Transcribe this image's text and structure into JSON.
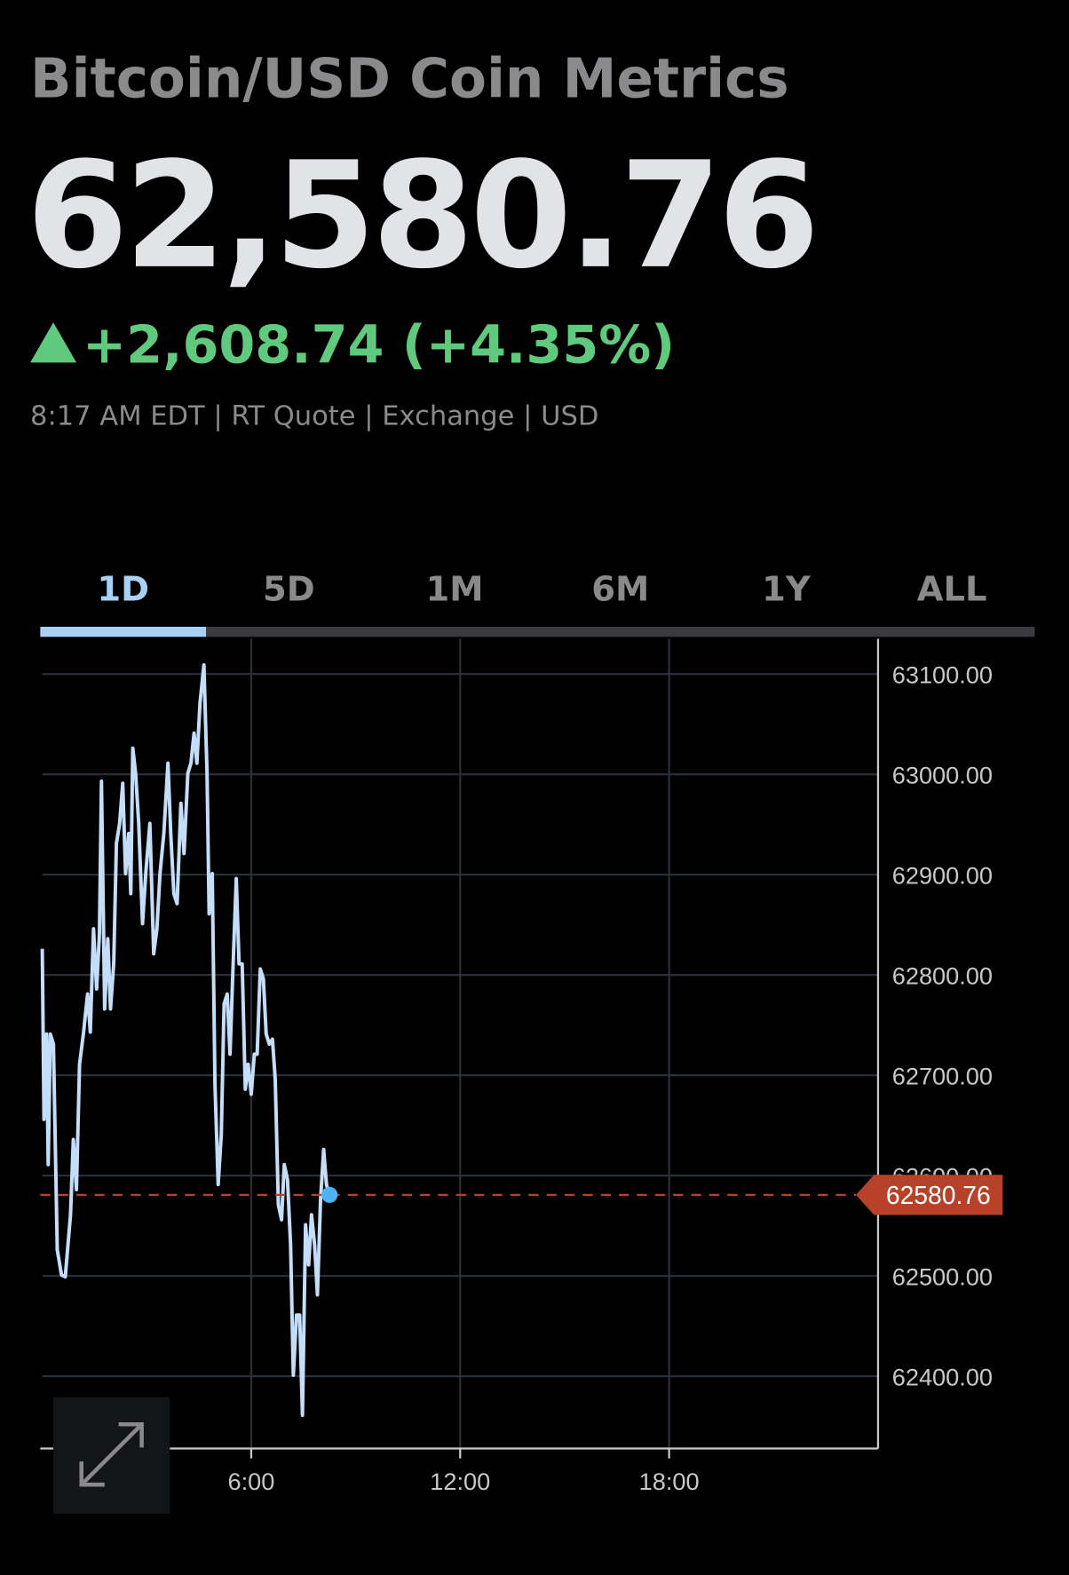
{
  "header": {
    "title": "Bitcoin/USD Coin Metrics",
    "price": "62,580.76",
    "change": "+2,608.74 (+4.35%)",
    "quote_info": "8:17 AM EDT | RT Quote | Exchange | USD"
  },
  "tabs": {
    "items": [
      "1D",
      "5D",
      "1M",
      "6M",
      "1Y",
      "ALL"
    ],
    "active": 0
  },
  "chart_data": {
    "type": "line",
    "x": [
      0,
      0.05,
      0.12,
      0.17,
      0.23,
      0.32,
      0.43,
      0.55,
      0.66,
      0.81,
      0.89,
      0.98,
      1.07,
      1.18,
      1.3,
      1.38,
      1.47,
      1.56,
      1.64,
      1.7,
      1.79,
      1.88,
      1.96,
      2.05,
      2.13,
      2.22,
      2.31,
      2.39,
      2.48,
      2.54,
      2.6,
      2.68,
      2.77,
      2.88,
      2.97,
      3.09,
      3.2,
      3.29,
      3.38,
      3.49,
      3.61,
      3.69,
      3.78,
      3.87,
      3.98,
      4.07,
      4.18,
      4.27,
      4.36,
      4.44,
      4.53,
      4.64,
      4.73,
      4.79,
      4.88,
      4.96,
      5.05,
      5.14,
      5.22,
      5.31,
      5.39,
      5.48,
      5.57,
      5.65,
      5.74,
      5.83,
      5.91,
      6,
      6.09,
      6.17,
      6.26,
      6.35,
      6.43,
      6.52,
      6.61,
      6.69,
      6.78,
      6.87,
      6.95,
      7.04,
      7.13,
      7.21,
      7.3,
      7.39,
      7.47,
      7.56,
      7.65,
      7.73,
      7.82,
      7.9,
      7.99,
      8.08,
      8.16,
      8.25
    ],
    "values": [
      62826,
      62656,
      62741,
      62611,
      62741,
      62731,
      62526,
      62501,
      62499,
      62561,
      62636,
      62586,
      62711,
      62741,
      62781,
      62743,
      62846,
      62786,
      62841,
      62993,
      62766,
      62836,
      62766,
      62811,
      62931,
      62951,
      62991,
      62901,
      62941,
      62881,
      63026,
      63001,
      62951,
      62851,
      62901,
      62951,
      62821,
      62846,
      62901,
      62941,
      63011,
      62941,
      62881,
      62871,
      62971,
      62921,
      63001,
      63011,
      63041,
      63011,
      63071,
      63109,
      63001,
      62861,
      62901,
      62691,
      62591,
      62641,
      62771,
      62781,
      62721,
      62811,
      62896,
      62811,
      62811,
      62686,
      62711,
      62681,
      62721,
      62721,
      62806,
      62796,
      62741,
      62731,
      62736,
      62696,
      62571,
      62556,
      62611,
      62596,
      62531,
      62401,
      62461,
      62461,
      62361,
      62551,
      62511,
      62561,
      62531,
      62481,
      62576,
      62626,
      62591,
      62580.76
    ],
    "color": "#c4defa",
    "last_price": 62580.76,
    "last_price_color": "#b8412a",
    "xlim": [
      0,
      24
    ],
    "xticks": [
      {
        "value": 6,
        "label": "6:00"
      },
      {
        "value": 12,
        "label": "12:00"
      },
      {
        "value": 18,
        "label": "18:00"
      }
    ],
    "ylim": [
      62328,
      63135
    ],
    "yticks": [
      {
        "value": 62400,
        "label": "62400.00"
      },
      {
        "value": 62500,
        "label": "62500.00"
      },
      {
        "value": 62600,
        "label": "62600.00"
      },
      {
        "value": 62700,
        "label": "62700.00"
      },
      {
        "value": 62800,
        "label": "62800.00"
      },
      {
        "value": 62900,
        "label": "62900.00"
      },
      {
        "value": 63000,
        "label": "63000.00"
      },
      {
        "value": 63100,
        "label": "63100.00"
      }
    ],
    "grid": true
  }
}
